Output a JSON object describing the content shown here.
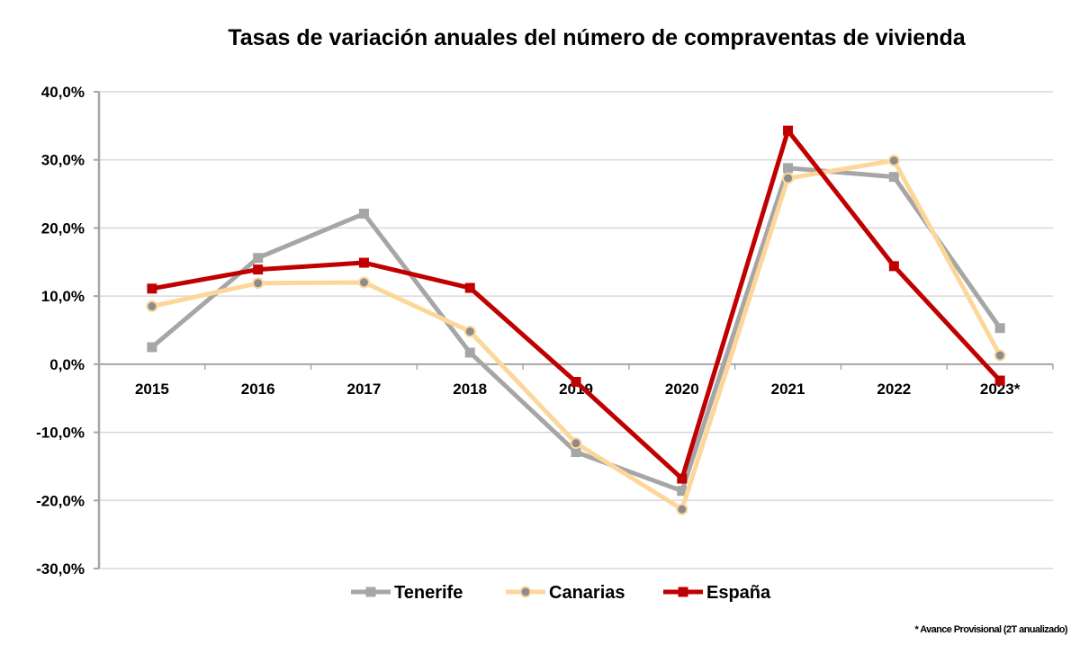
{
  "chart_data": {
    "type": "line",
    "title": "Tasas de variación anuales del número de compraventas de vivienda",
    "xlabel": "",
    "ylabel": "",
    "categories": [
      "2015",
      "2016",
      "2017",
      "2018",
      "2019",
      "2020",
      "2021",
      "2022",
      "2023*"
    ],
    "ylim": [
      -30,
      40
    ],
    "yticks": [
      -30,
      -20,
      -10,
      0,
      10,
      20,
      30,
      40
    ],
    "ytick_labels": [
      "-30,0%",
      "-20,0%",
      "-10,0%",
      "0,0%",
      "10,0%",
      "20,0%",
      "30,0%",
      "40,0%"
    ],
    "grid": true,
    "legend_position": "bottom",
    "series": [
      {
        "name": "Tenerife",
        "color": "#a6a6a6",
        "marker": "square",
        "values": [
          2.5,
          15.6,
          22.1,
          1.7,
          -12.9,
          -18.6,
          28.8,
          27.5,
          5.3
        ]
      },
      {
        "name": "Canarias",
        "color": "#fdd79a",
        "marker": "circle",
        "values": [
          8.5,
          11.9,
          12.0,
          4.8,
          -11.6,
          -21.3,
          27.3,
          29.9,
          1.3
        ]
      },
      {
        "name": "España",
        "color": "#c00000",
        "marker": "square",
        "values": [
          11.1,
          13.9,
          14.9,
          11.2,
          -2.6,
          -16.8,
          34.3,
          14.4,
          -2.4
        ]
      }
    ],
    "footnote": "* Avance Provisional (2T anualizado)"
  }
}
